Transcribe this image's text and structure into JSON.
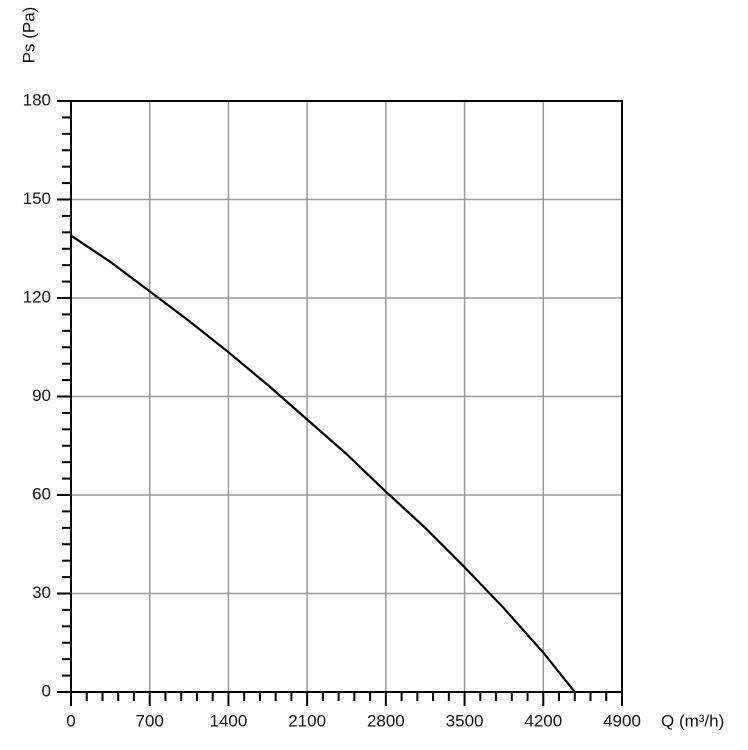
{
  "chart_data": {
    "type": "line",
    "x_label": "Q (m³/h)",
    "y_label": "Ps (Pa)",
    "x": [
      0,
      350,
      700,
      1050,
      1400,
      1750,
      2100,
      2450,
      2800,
      3150,
      3500,
      3850,
      4200,
      4480
    ],
    "series": [
      {
        "color": "#000000",
        "values": [
          139,
          131,
          122,
          113,
          103.5,
          93.5,
          83,
          72.5,
          61,
          50,
          38,
          25.5,
          12,
          0
        ]
      }
    ],
    "xlim": [
      0,
      4900
    ],
    "ylim": [
      0,
      180
    ],
    "xticks": [
      0,
      700,
      1400,
      2100,
      2800,
      3500,
      4200,
      4900
    ],
    "yticks": [
      0,
      30,
      60,
      90,
      120,
      150,
      180
    ],
    "x_minor_ticks": [
      140,
      280,
      420,
      560,
      840,
      980,
      1120,
      1260,
      1540,
      1680,
      1820,
      1960,
      2240,
      2380,
      2520,
      2660,
      2940,
      3080,
      3220,
      3360,
      3640,
      3780,
      3920,
      4060,
      4340,
      4480,
      4620,
      4760
    ],
    "y_minor_ticks": [
      5,
      10,
      15,
      20,
      25,
      35,
      40,
      45,
      50,
      55,
      65,
      70,
      75,
      80,
      85,
      95,
      100,
      105,
      110,
      115,
      125,
      130,
      135,
      140,
      145,
      155,
      160,
      165,
      170,
      175
    ],
    "grid": true
  }
}
